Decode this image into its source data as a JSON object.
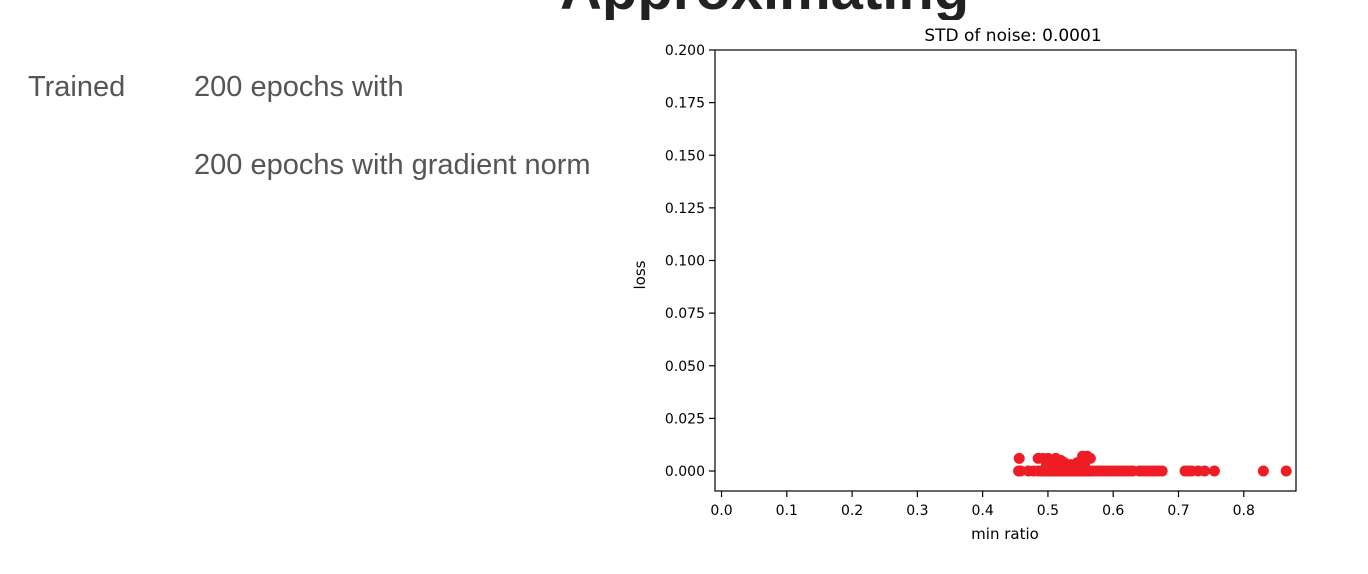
{
  "slide": {
    "heading": "Approximating",
    "labels": {
      "trained": "Trained",
      "line1": "200 epochs with",
      "line2": "200 epochs with gradient norm"
    }
  },
  "chart_data": {
    "type": "scatter",
    "title": "STD of noise: 0.0001",
    "xlabel": "min ratio",
    "ylabel": "loss",
    "xlim": [
      -0.01,
      0.88
    ],
    "ylim": [
      -0.0095,
      0.2
    ],
    "xticks": [
      0.0,
      0.1,
      0.2,
      0.3,
      0.4,
      0.5,
      0.6,
      0.7,
      0.8
    ],
    "xtick_labels": [
      "0.0",
      "0.1",
      "0.2",
      "0.3",
      "0.4",
      "0.5",
      "0.6",
      "0.7",
      "0.8"
    ],
    "yticks": [
      0.0,
      0.025,
      0.05,
      0.075,
      0.1,
      0.125,
      0.15,
      0.175,
      0.2
    ],
    "ytick_labels": [
      "0.000",
      "0.025",
      "0.050",
      "0.075",
      "0.100",
      "0.125",
      "0.150",
      "0.175",
      "0.200"
    ],
    "grid": false,
    "marker_color": "#ee1c25",
    "series": [
      {
        "x": [
          0.455,
          0.458,
          0.47,
          0.478,
          0.485,
          0.488,
          0.492,
          0.495,
          0.498,
          0.5,
          0.502,
          0.505,
          0.508,
          0.51,
          0.512,
          0.515,
          0.518,
          0.52,
          0.522,
          0.525,
          0.528,
          0.53,
          0.532,
          0.535,
          0.538,
          0.54,
          0.542,
          0.545,
          0.548,
          0.55,
          0.552,
          0.555,
          0.558,
          0.56,
          0.562,
          0.565,
          0.57,
          0.575,
          0.58,
          0.585,
          0.59,
          0.595,
          0.6,
          0.605,
          0.61,
          0.615,
          0.62,
          0.625,
          0.63,
          0.64,
          0.645,
          0.65,
          0.655,
          0.66,
          0.665,
          0.67,
          0.675,
          0.71,
          0.715,
          0.72,
          0.73,
          0.74,
          0.755,
          0.83,
          0.865,
          0.456,
          0.485,
          0.492,
          0.5,
          0.505,
          0.512,
          0.52,
          0.525,
          0.535,
          0.545,
          0.553,
          0.56,
          0.565,
          0.498,
          0.51,
          0.53,
          0.55,
          0.556,
          0.515,
          0.54
        ],
        "y": [
          0.0,
          0.0,
          0.0,
          0.0,
          0.0,
          0.0,
          0.0,
          0.0,
          0.0,
          0.0,
          0.0,
          0.0,
          0.0,
          0.0,
          0.0,
          0.0,
          0.0,
          0.0,
          0.0,
          0.0,
          0.0,
          0.0,
          0.0,
          0.0,
          0.0,
          0.0,
          0.0,
          0.0,
          0.0,
          0.0,
          0.0,
          0.0,
          0.0,
          0.0,
          0.0,
          0.0,
          0.0,
          0.0,
          0.0,
          0.0,
          0.0,
          0.0,
          0.0,
          0.0,
          0.0,
          0.0,
          0.0,
          0.0,
          0.0,
          0.0,
          0.0,
          0.0,
          0.0,
          0.0,
          0.0,
          0.0,
          0.0,
          0.0,
          0.0,
          0.0,
          0.0,
          0.0,
          0.0,
          0.0,
          0.0,
          0.006,
          0.006,
          0.006,
          0.006,
          0.005,
          0.006,
          0.005,
          0.004,
          0.003,
          0.004,
          0.007,
          0.007,
          0.006,
          0.003,
          0.003,
          0.002,
          0.002,
          0.003,
          0.004,
          0.002
        ]
      }
    ]
  }
}
